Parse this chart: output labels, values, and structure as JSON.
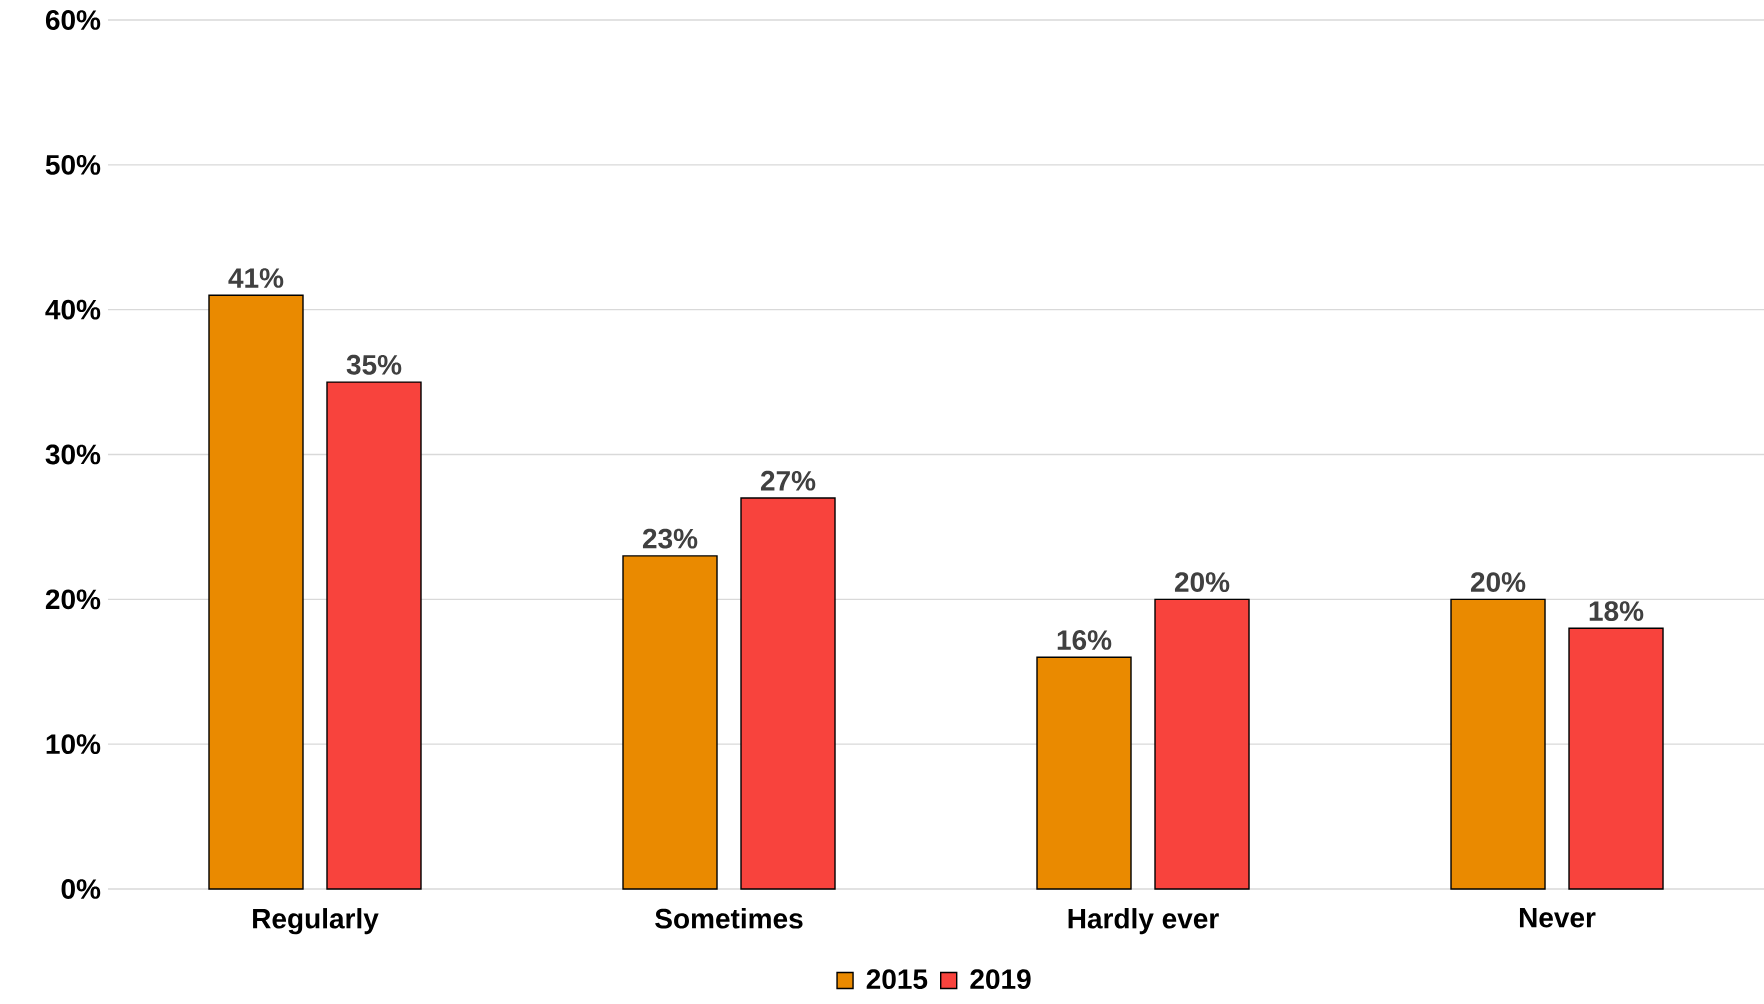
{
  "chart_data": {
    "type": "bar",
    "categories": [
      "Regularly",
      "Sometimes",
      "Hardly ever",
      "Never"
    ],
    "series": [
      {
        "name": "2015",
        "color": "#ea8a00",
        "values": [
          41,
          23,
          16,
          20
        ],
        "value_labels": [
          "41%",
          "23%",
          "16%",
          "20%"
        ]
      },
      {
        "name": "2019",
        "color": "#f8433d",
        "values": [
          35,
          27,
          20,
          18
        ],
        "value_labels": [
          "35%",
          "27%",
          "20%",
          "18%"
        ]
      }
    ],
    "ylim": [
      0,
      60
    ],
    "yticks": [
      {
        "value": 0,
        "label": "0%"
      },
      {
        "value": 10,
        "label": "10%"
      },
      {
        "value": 20,
        "label": "20%"
      },
      {
        "value": 30,
        "label": "30%"
      },
      {
        "value": 40,
        "label": "40%"
      },
      {
        "value": 50,
        "label": "50%"
      },
      {
        "value": 60,
        "label": "60%"
      }
    ],
    "grid": "y",
    "legend": "bottom"
  }
}
